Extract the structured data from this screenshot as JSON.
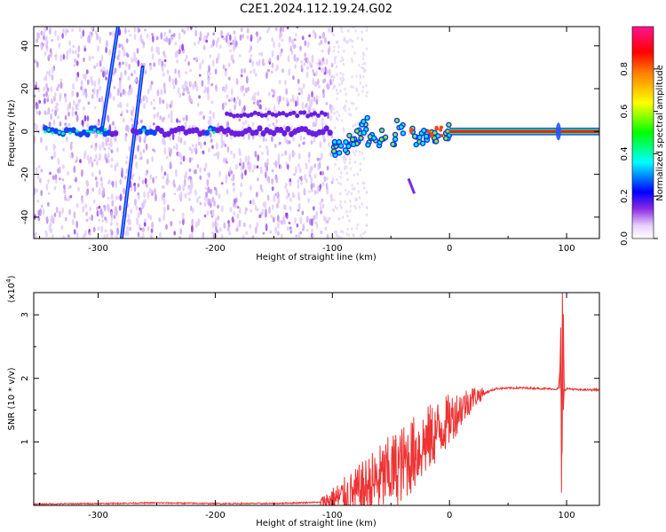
{
  "title": "C2E1.2024.112.19.24.G02",
  "chart_data": [
    {
      "type": "heatmap",
      "xlabel": "Height of straight line (km)",
      "ylabel": "Frequency (Hz)",
      "xlim": [
        -355,
        128
      ],
      "ylim": [
        -50,
        49
      ],
      "xticks": [
        -300,
        -200,
        -100,
        0,
        100
      ],
      "yticks": [
        -40,
        -20,
        0,
        20,
        40
      ],
      "colorbar": {
        "label": "Normalized spectral amplitude",
        "range": [
          0,
          1
        ],
        "ticks": [
          0.0,
          0.2,
          0.4,
          0.6,
          0.8
        ],
        "tick_labels": [
          "0.0",
          "0.2",
          "0.4",
          "0.6",
          "0.8"
        ],
        "colors": [
          "#ffffff",
          "#8a2be2",
          "#0000ff",
          "#00ffff",
          "#00ff00",
          "#ffff00",
          "#ff8000",
          "#ff0000",
          "#ff1493"
        ]
      },
      "features": {
        "carrier_line": {
          "freq_hz": 0,
          "x_range": [
            0,
            128
          ],
          "amplitude": 0.9
        },
        "diagonal_streaks": [
          {
            "x_start": -280,
            "freq_start": -50,
            "x_end": -262,
            "freq_end": 30
          },
          {
            "x_start": -297,
            "freq_start": 0,
            "x_end": -283,
            "freq_end": 49
          }
        ],
        "disturbance_x_range": [
          -100,
          0
        ],
        "spike_x": 93
      }
    },
    {
      "type": "line",
      "xlabel": "Height of straight line (km)",
      "ylabel": "SNR (10 * v/v)",
      "scale_note": "(x10",
      "scale_exp": "4",
      "scale_close": ")",
      "xlim": [
        -355,
        128
      ],
      "ylim": [
        0,
        3.35
      ],
      "xticks": [
        -300,
        -200,
        -100,
        0,
        100
      ],
      "yticks": [
        1,
        2,
        3
      ],
      "series_color": "#ee3333",
      "x": [
        -355,
        -300,
        -250,
        -200,
        -150,
        -110,
        -80,
        -60,
        -40,
        -20,
        0,
        20,
        40,
        60,
        80,
        90,
        93,
        95,
        96,
        97,
        98,
        100,
        110,
        128
      ],
      "y": [
        0.02,
        0.03,
        0.04,
        0.03,
        0.03,
        0.05,
        0.18,
        0.4,
        0.65,
        1.0,
        1.35,
        1.7,
        1.84,
        1.85,
        1.84,
        1.83,
        1.84,
        2.3,
        0.4,
        3.3,
        1.8,
        1.84,
        1.82,
        1.82
      ]
    }
  ]
}
